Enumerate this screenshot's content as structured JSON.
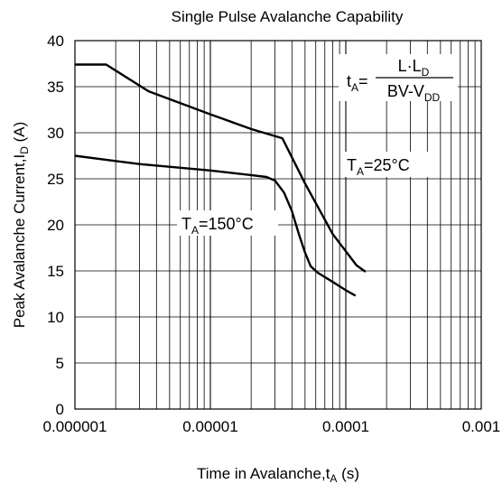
{
  "chart_data": {
    "type": "line",
    "title": "Single Pulse Avalanche Capability",
    "xlabel": {
      "main": "Time in Avalanche,t",
      "sub": "A",
      "tail": " (s)"
    },
    "ylabel": {
      "main": "Peak Avalanche Current,I",
      "sub": "D",
      "tail": " (A)"
    },
    "x_scale": "log",
    "xlim": [
      1e-06,
      0.001
    ],
    "ylim": [
      0,
      40
    ],
    "grid": true,
    "x_tick_labels": [
      "0.000001",
      "0.00001",
      "0.0001",
      "0.001"
    ],
    "y_tick_labels": [
      "0",
      "5",
      "10",
      "15",
      "20",
      "25",
      "30",
      "35",
      "40"
    ],
    "series": [
      {
        "name": "TA=25°C",
        "label": {
          "main": "T",
          "sub": "A",
          "tail": "=25°C"
        },
        "points": [
          [
            1e-06,
            37.4
          ],
          [
            1.7e-06,
            37.4
          ],
          [
            3.5e-06,
            34.5
          ],
          [
            1e-05,
            32.0
          ],
          [
            2e-05,
            30.4
          ],
          [
            3.4e-05,
            29.4
          ],
          [
            5e-05,
            24.5
          ],
          [
            8e-05,
            19.0
          ],
          [
            0.00012,
            15.6
          ],
          [
            0.00014,
            14.9
          ]
        ]
      },
      {
        "name": "TA=150°C",
        "label": {
          "main": "T",
          "sub": "A",
          "tail": "=150°C"
        },
        "points": [
          [
            1e-06,
            27.5
          ],
          [
            3e-06,
            26.6
          ],
          [
            1e-05,
            25.9
          ],
          [
            2e-05,
            25.4
          ],
          [
            2.6e-05,
            25.2
          ],
          [
            3e-05,
            24.8
          ],
          [
            3.5e-05,
            23.5
          ],
          [
            4e-05,
            21.5
          ],
          [
            4.5e-05,
            19.0
          ],
          [
            5e-05,
            17.0
          ],
          [
            5.5e-05,
            15.5
          ],
          [
            6.2e-05,
            14.8
          ],
          [
            8e-05,
            13.8
          ],
          [
            0.0001,
            12.9
          ],
          [
            0.000118,
            12.3
          ]
        ]
      }
    ],
    "formula": {
      "lhs_main": "t",
      "lhs_sub": "A",
      "eq": "=",
      "num_main": "L·L",
      "num_sub": "D",
      "den_main": "BV-V",
      "den_sub": "DD"
    }
  }
}
